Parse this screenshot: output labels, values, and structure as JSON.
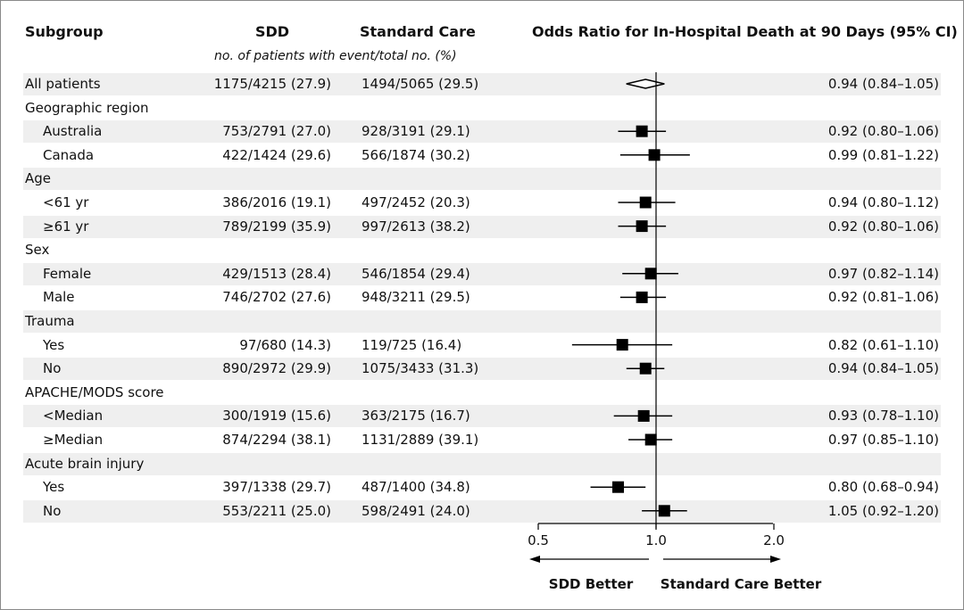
{
  "headers": {
    "subgroup": "Subgroup",
    "sdd": "SDD",
    "standard": "Standard Care",
    "note": "no. of patients with event/total no. (%)",
    "or_title": "Odds Ratio for In-Hospital Death at 90 Days (95% CI)"
  },
  "footer": {
    "left": "SDD Better",
    "right": "Standard Care Better"
  },
  "chart_data": {
    "type": "forest",
    "xlabel": "",
    "xticks": [
      "0.5",
      "1.0",
      "2.0"
    ],
    "xlim": [
      0.5,
      2.0
    ],
    "log_scale": true,
    "reference_line": 1.0,
    "rows": [
      {
        "label": "All patients",
        "indent": false,
        "shaded": true,
        "sdd": "1175/4215 (27.9)",
        "std": "1494/5065 (29.5)",
        "or": 0.94,
        "lo": 0.84,
        "hi": 1.05,
        "or_text": "0.94 (0.84–1.05)",
        "marker": "diamond"
      },
      {
        "label": "Geographic region",
        "indent": false,
        "shaded": false,
        "header": true
      },
      {
        "label": "Australia",
        "indent": true,
        "shaded": true,
        "sdd": "753/2791 (27.0)",
        "std": "928/3191 (29.1)",
        "or": 0.92,
        "lo": 0.8,
        "hi": 1.06,
        "or_text": "0.92 (0.80–1.06)",
        "marker": "square"
      },
      {
        "label": "Canada",
        "indent": true,
        "shaded": false,
        "sdd": "422/1424 (29.6)",
        "std": "566/1874 (30.2)",
        "or": 0.99,
        "lo": 0.81,
        "hi": 1.22,
        "or_text": "0.99 (0.81–1.22)",
        "marker": "square"
      },
      {
        "label": "Age",
        "indent": false,
        "shaded": true,
        "header": true
      },
      {
        "label": "<61 yr",
        "indent": true,
        "shaded": false,
        "sdd": "386/2016 (19.1)",
        "std": "497/2452 (20.3)",
        "or": 0.94,
        "lo": 0.8,
        "hi": 1.12,
        "or_text": "0.94 (0.80–1.12)",
        "marker": "square"
      },
      {
        "label": "≥61 yr",
        "indent": true,
        "shaded": true,
        "sdd": "789/2199 (35.9)",
        "std": "997/2613 (38.2)",
        "or": 0.92,
        "lo": 0.8,
        "hi": 1.06,
        "or_text": "0.92 (0.80–1.06)",
        "marker": "square"
      },
      {
        "label": "Sex",
        "indent": false,
        "shaded": false,
        "header": true
      },
      {
        "label": "Female",
        "indent": true,
        "shaded": true,
        "sdd": "429/1513 (28.4)",
        "std": "546/1854 (29.4)",
        "or": 0.97,
        "lo": 0.82,
        "hi": 1.14,
        "or_text": "0.97 (0.82–1.14)",
        "marker": "square"
      },
      {
        "label": "Male",
        "indent": true,
        "shaded": false,
        "sdd": "746/2702 (27.6)",
        "std": "948/3211 (29.5)",
        "or": 0.92,
        "lo": 0.81,
        "hi": 1.06,
        "or_text": "0.92 (0.81–1.06)",
        "marker": "square"
      },
      {
        "label": "Trauma",
        "indent": false,
        "shaded": true,
        "header": true
      },
      {
        "label": "Yes",
        "indent": true,
        "shaded": false,
        "sdd": "97/680 (14.3)",
        "std": "119/725 (16.4)",
        "or": 0.82,
        "lo": 0.61,
        "hi": 1.1,
        "or_text": "0.82 (0.61–1.10)",
        "marker": "square"
      },
      {
        "label": "No",
        "indent": true,
        "shaded": true,
        "sdd": "890/2972 (29.9)",
        "std": "1075/3433 (31.3)",
        "or": 0.94,
        "lo": 0.84,
        "hi": 1.05,
        "or_text": "0.94 (0.84–1.05)",
        "marker": "square"
      },
      {
        "label": "APACHE/MODS score",
        "indent": false,
        "shaded": false,
        "header": true
      },
      {
        "label": "<Median",
        "indent": true,
        "shaded": true,
        "sdd": "300/1919 (15.6)",
        "std": "363/2175 (16.7)",
        "or": 0.93,
        "lo": 0.78,
        "hi": 1.1,
        "or_text": "0.93 (0.78–1.10)",
        "marker": "square"
      },
      {
        "label": "≥Median",
        "indent": true,
        "shaded": false,
        "sdd": "874/2294 (38.1)",
        "std": "1131/2889 (39.1)",
        "or": 0.97,
        "lo": 0.85,
        "hi": 1.1,
        "or_text": "0.97 (0.85–1.10)",
        "marker": "square"
      },
      {
        "label": "Acute brain injury",
        "indent": false,
        "shaded": true,
        "header": true
      },
      {
        "label": "Yes",
        "indent": true,
        "shaded": false,
        "sdd": "397/1338 (29.7)",
        "std": "487/1400 (34.8)",
        "or": 0.8,
        "lo": 0.68,
        "hi": 0.94,
        "or_text": "0.80 (0.68–0.94)",
        "marker": "square"
      },
      {
        "label": "No",
        "indent": true,
        "shaded": true,
        "sdd": "553/2211 (25.0)",
        "std": "598/2491 (24.0)",
        "or": 1.05,
        "lo": 0.92,
        "hi": 1.2,
        "or_text": "1.05 (0.92–1.20)",
        "marker": "square"
      }
    ]
  }
}
